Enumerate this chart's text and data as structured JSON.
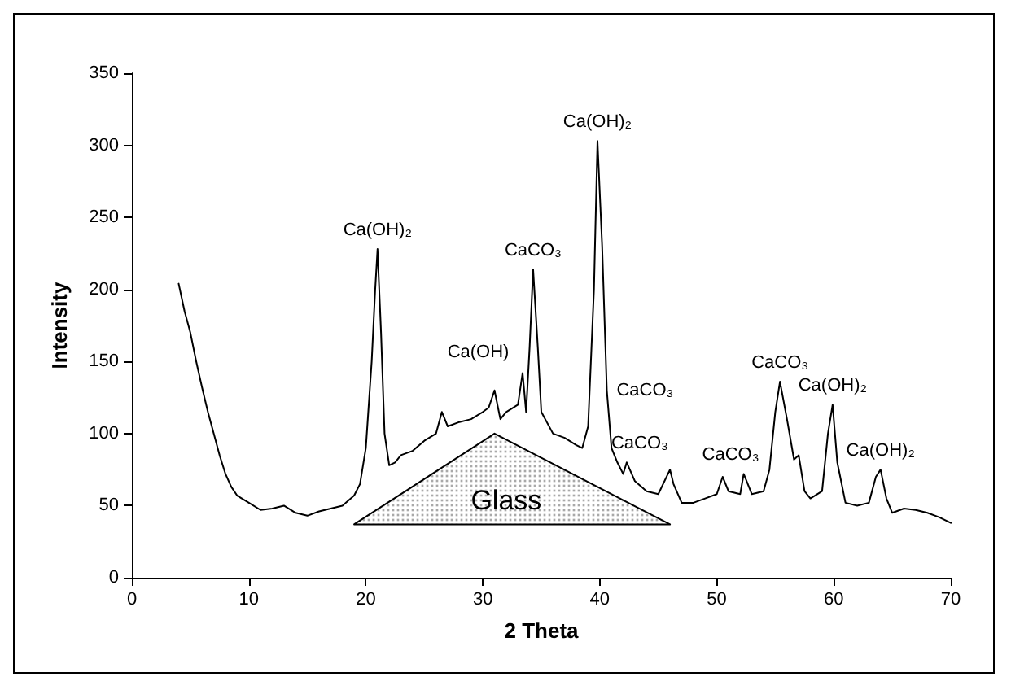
{
  "chart_data": {
    "type": "line",
    "xlabel": "2 Theta",
    "ylabel": "Intensity",
    "series": [
      {
        "color": "#000000",
        "x": [
          4,
          4.5,
          5,
          5.5,
          6,
          6.5,
          7,
          7.5,
          8,
          8.5,
          9,
          10,
          11,
          12,
          13,
          14,
          15,
          16,
          17,
          18,
          19,
          19.5,
          20,
          20.5,
          20.8,
          21,
          21.3,
          21.6,
          22,
          22.5,
          23,
          24,
          25,
          26,
          26.5,
          27,
          28,
          29,
          30,
          30.5,
          31,
          31.5,
          32,
          33,
          33.4,
          33.7,
          34,
          34.3,
          34.7,
          35,
          36,
          37,
          38,
          38.5,
          39,
          39.5,
          39.8,
          40.2,
          40.6,
          41,
          41.5,
          42,
          42.3,
          43,
          44,
          45,
          46,
          46.3,
          47,
          48,
          49,
          50,
          50.5,
          51,
          52,
          52.3,
          53,
          54,
          54.5,
          55,
          55.4,
          56,
          56.6,
          57,
          57.5,
          58,
          59,
          59.5,
          59.9,
          60.3,
          61,
          62,
          63,
          63.6,
          64,
          64.5,
          65,
          66,
          67,
          68,
          69,
          70
        ],
        "values": [
          204,
          185,
          170,
          150,
          132,
          115,
          100,
          85,
          72,
          63,
          57,
          52,
          47,
          48,
          50,
          45,
          43,
          46,
          48,
          50,
          57,
          65,
          90,
          150,
          200,
          228,
          170,
          100,
          78,
          80,
          85,
          88,
          95,
          100,
          115,
          105,
          108,
          110,
          115,
          118,
          130,
          110,
          115,
          120,
          142,
          115,
          160,
          214,
          160,
          115,
          100,
          97,
          92,
          90,
          105,
          200,
          303,
          230,
          130,
          90,
          80,
          72,
          80,
          67,
          60,
          58,
          75,
          65,
          52,
          52,
          55,
          58,
          70,
          60,
          58,
          72,
          58,
          60,
          75,
          115,
          136,
          110,
          82,
          85,
          60,
          55,
          60,
          100,
          120,
          80,
          52,
          50,
          52,
          70,
          75,
          55,
          45,
          48,
          47,
          45,
          42,
          38
        ]
      },
      {
        "type": "area",
        "color": "#000000",
        "x": [
          19,
          31,
          46
        ],
        "values": [
          37,
          100,
          37
        ]
      }
    ],
    "marker": "none",
    "line_style": "solid",
    "grid": false,
    "xlim": [
      0,
      70
    ],
    "xticks": [
      0,
      10,
      20,
      30,
      40,
      50,
      60,
      70
    ],
    "ylim": [
      0,
      350
    ],
    "yticks": [
      0,
      50,
      100,
      150,
      200,
      250,
      300,
      350
    ],
    "annotations": [
      {
        "text": "Ca(OH)₂",
        "x": 21,
        "y": 228
      },
      {
        "text": "Ca(OH)",
        "x": 31,
        "y": 130
      },
      {
        "text": "CaCO₃",
        "x": 34.3,
        "y": 214
      },
      {
        "text": "Ca(OH)₂",
        "x": 39.8,
        "y": 303
      },
      {
        "text": "CaCO₃",
        "x": 40.6,
        "y": 130
      },
      {
        "text": "CaCO₃",
        "x": 42.3,
        "y": 80
      },
      {
        "text": "CaCO₃",
        "x": 52.3,
        "y": 72
      },
      {
        "text": "CaCO₃",
        "x": 55.4,
        "y": 136
      },
      {
        "text": "Ca(OH)₂",
        "x": 59.9,
        "y": 120
      },
      {
        "text": "Ca(OH)₂",
        "x": 64,
        "y": 75
      },
      "Glass"
    ]
  }
}
